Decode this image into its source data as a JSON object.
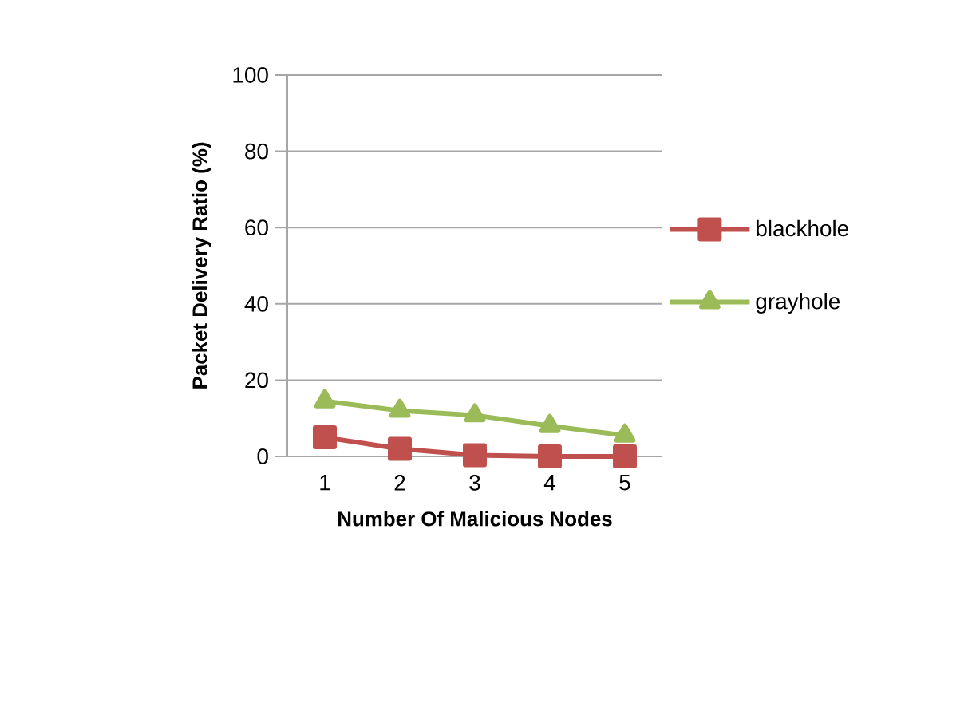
{
  "chart_data": {
    "type": "line",
    "xlabel": "Number Of Malicious Nodes",
    "ylabel": "Packet Delivery Ratio (%)",
    "categories": [
      "1",
      "2",
      "3",
      "4",
      "5"
    ],
    "series": [
      {
        "name": "blackhole",
        "color": "#c0504d",
        "marker": "square",
        "values": [
          5,
          2,
          0.3,
          0,
          0
        ]
      },
      {
        "name": "grayhole",
        "color": "#9bbb59",
        "marker": "triangle",
        "values": [
          14.5,
          12,
          10.8,
          8,
          5.5
        ]
      }
    ],
    "ylim": [
      0,
      100
    ],
    "yticks": [
      0,
      20,
      40,
      60,
      80,
      100
    ],
    "grid": "y",
    "legend": "right"
  }
}
